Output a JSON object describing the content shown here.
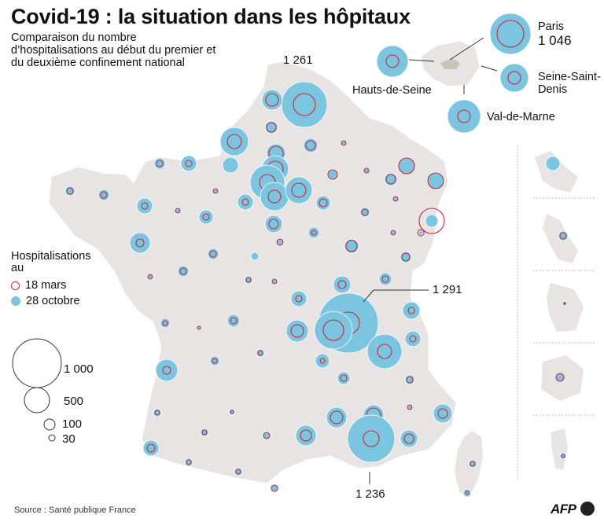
{
  "header": {
    "title": "Covid-19 : la situation dans les hôpitaux",
    "subtitle": "Comparaison du nombre d’hospitalisations au début du premier et du deuxième confinement national"
  },
  "legend": {
    "title": "Hospitalisations au",
    "ring_label": "18 mars",
    "fill_label": "28 octobre",
    "scale": [
      "1 000",
      "500",
      "100",
      "30"
    ]
  },
  "callouts": {
    "nord": "1 261",
    "rhone": "1 291",
    "bouches_du_rhone": "1 236",
    "paris_name": "Paris",
    "paris_value": "1 046",
    "hauts_de_seine": "Hauts-de-Seine",
    "seine_saint_denis": "Seine-Saint-Denis",
    "val_de_marne": "Val-de-Marne"
  },
  "footer": {
    "source": "Source : Santé publique France",
    "brand": "AFP"
  },
  "colors": {
    "ring_18_mars": "#c8283a",
    "fill_28_octobre": "#7cc5e0",
    "land": "#e8e4e3",
    "borders": "#ffffff"
  }
}
